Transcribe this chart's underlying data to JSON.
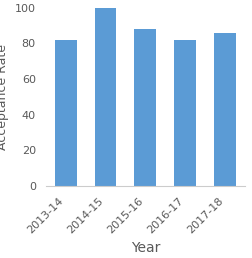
{
  "categories": [
    "2013-14",
    "2014-15",
    "2015-16",
    "2016-17",
    "2017-18"
  ],
  "values": [
    82,
    100,
    88,
    82,
    86
  ],
  "bar_color": "#5B9BD5",
  "xlabel": "Year",
  "ylabel": "Acceptance Rate",
  "ylim": [
    0,
    100
  ],
  "yticks": [
    0,
    20,
    40,
    60,
    80,
    100
  ],
  "xlabel_fontsize": 10,
  "ylabel_fontsize": 9,
  "tick_fontsize": 8,
  "label_color": "#595959",
  "bar_width": 0.55
}
